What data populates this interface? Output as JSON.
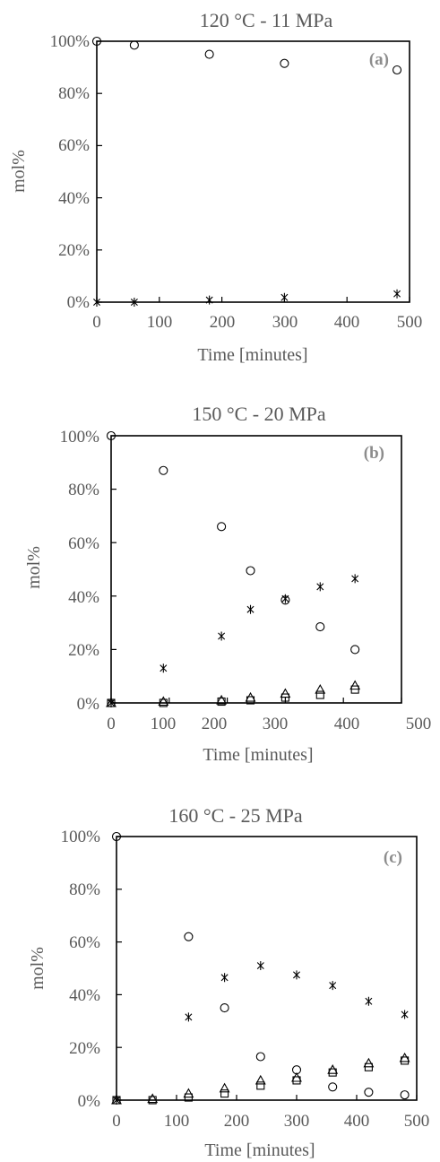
{
  "chart_data": [
    {
      "type": "scatter",
      "title": "120 °C - 11 MPa",
      "panel_label": "(a)",
      "xlabel": "Time [minutes]",
      "ylabel": "mol%",
      "xlim": [
        0,
        500
      ],
      "ylim": [
        0,
        100
      ],
      "xticks": [
        "0",
        "100",
        "200",
        "300",
        "400",
        "500"
      ],
      "yticks": [
        "0%",
        "20%",
        "40%",
        "60%",
        "80%",
        "100%"
      ],
      "grid": false,
      "series": [
        {
          "marker": "circle",
          "x": [
            0,
            60,
            180,
            300,
            480
          ],
          "y": [
            100,
            98.5,
            95,
            91.5,
            89
          ]
        },
        {
          "marker": "asterisk",
          "x": [
            0,
            60,
            180,
            300,
            480
          ],
          "y": [
            0,
            0,
            0.8,
            1.8,
            3.2
          ]
        }
      ]
    },
    {
      "type": "scatter",
      "title": "150 °C - 20 MPa",
      "panel_label": "(b)",
      "xlabel": "Time [minutes]",
      "ylabel": "mol%",
      "xlim": [
        0,
        500
      ],
      "ylim": [
        0,
        100
      ],
      "xticks": [
        "0",
        "100",
        "200",
        "300",
        "400",
        "500"
      ],
      "yticks": [
        "0%",
        "20%",
        "40%",
        "60%",
        "80%",
        "100%"
      ],
      "grid": false,
      "series": [
        {
          "marker": "circle",
          "x": [
            0,
            90,
            190,
            240,
            300,
            360,
            420
          ],
          "y": [
            100,
            87,
            66,
            49.5,
            38.5,
            28.5,
            20
          ]
        },
        {
          "marker": "asterisk",
          "x": [
            0,
            90,
            190,
            240,
            300,
            360,
            420
          ],
          "y": [
            0,
            13,
            25,
            35,
            39,
            43.5,
            46.5
          ]
        },
        {
          "marker": "triangle",
          "x": [
            0,
            90,
            190,
            240,
            300,
            360,
            420
          ],
          "y": [
            0,
            0.5,
            1,
            2,
            3.5,
            5,
            6.5
          ]
        },
        {
          "marker": "square",
          "x": [
            0,
            90,
            190,
            240,
            300,
            360,
            420
          ],
          "y": [
            0,
            0,
            0.5,
            1,
            2,
            3,
            5
          ]
        }
      ]
    },
    {
      "type": "scatter",
      "title": "160 °C - 25 MPa",
      "panel_label": "(c)",
      "xlabel": "Time [minutes]",
      "ylabel": "mol%",
      "xlim": [
        0,
        500
      ],
      "ylim": [
        0,
        100
      ],
      "xticks": [
        "0",
        "100",
        "200",
        "300",
        "400",
        "500"
      ],
      "yticks": [
        "0%",
        "20%",
        "40%",
        "60%",
        "80%",
        "100%"
      ],
      "grid": false,
      "series": [
        {
          "marker": "circle",
          "x": [
            0,
            120,
            180,
            240,
            300,
            360,
            420,
            480
          ],
          "y": [
            100,
            62,
            35,
            16.5,
            11.5,
            5,
            3,
            2
          ]
        },
        {
          "marker": "asterisk",
          "x": [
            0,
            120,
            180,
            240,
            300,
            360,
            420,
            480
          ],
          "y": [
            0,
            31.5,
            46.5,
            51,
            47.5,
            43.5,
            37.5,
            32.5
          ]
        },
        {
          "marker": "triangle",
          "x": [
            0,
            60,
            120,
            180,
            240,
            300,
            360,
            420,
            480
          ],
          "y": [
            0,
            0.5,
            2.5,
            4.5,
            7.5,
            8.5,
            11.5,
            14,
            16
          ]
        },
        {
          "marker": "square",
          "x": [
            0,
            60,
            120,
            180,
            240,
            300,
            360,
            420,
            480
          ],
          "y": [
            0,
            0,
            1,
            2.5,
            5.5,
            7.5,
            10.5,
            12.5,
            15
          ]
        }
      ]
    }
  ]
}
